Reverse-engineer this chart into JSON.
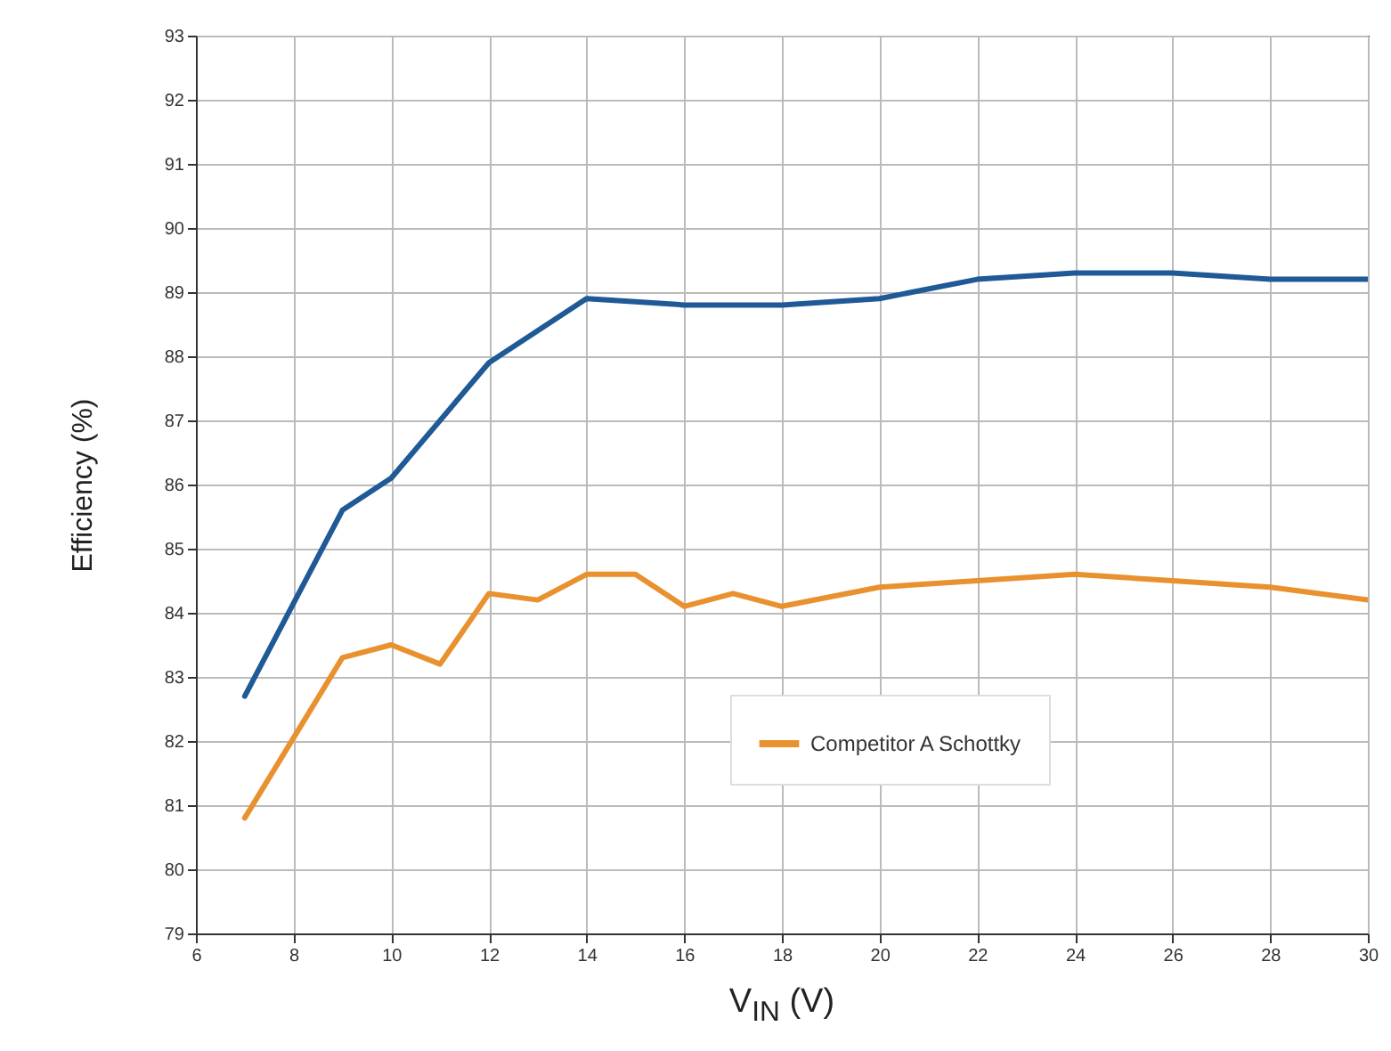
{
  "chart_data": {
    "type": "line",
    "xlabel": "V$_{IN}$ (V)",
    "ylabel": "Efficiency (%)",
    "xlim": [
      6,
      30
    ],
    "xticks": [
      6,
      8,
      10,
      12,
      14,
      16,
      18,
      20,
      22,
      24,
      26,
      28,
      30
    ],
    "ylim": [
      79,
      93
    ],
    "yticks": [
      79,
      80,
      81,
      82,
      83,
      84,
      85,
      86,
      87,
      88,
      89,
      90,
      91,
      92,
      93
    ],
    "grid": true,
    "legend": "bottom right",
    "marker": "none",
    "line_style": "solid",
    "series": [
      {
        "color": "#1f5a96",
        "x": [
          7,
          9,
          10,
          12,
          14,
          16,
          18,
          20,
          22,
          24,
          26,
          28,
          30
        ],
        "values": [
          82.7,
          85.6,
          86.1,
          87.9,
          88.9,
          88.8,
          88.8,
          88.9,
          89.2,
          89.3,
          89.3,
          89.2,
          89.2
        ]
      },
      {
        "name": "Competitor A Schottky",
        "color": "#e8912e",
        "x": [
          7,
          9,
          10,
          11,
          12,
          13,
          14,
          15,
          16,
          17,
          18,
          20,
          22,
          24,
          26,
          28,
          30
        ],
        "values": [
          80.8,
          83.3,
          83.5,
          83.2,
          84.3,
          84.2,
          84.6,
          84.6,
          84.1,
          84.3,
          84.1,
          84.4,
          84.5,
          84.6,
          84.5,
          84.4,
          84.2
        ]
      }
    ]
  }
}
